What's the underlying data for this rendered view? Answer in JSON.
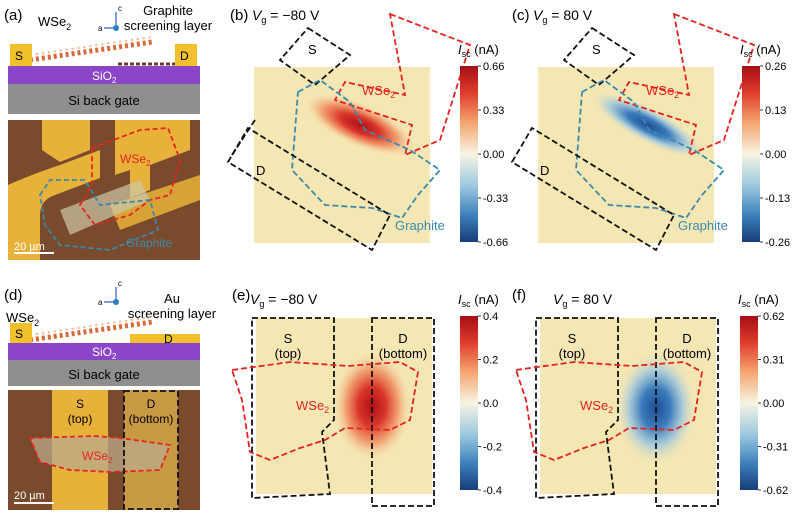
{
  "panels": {
    "a": {
      "label": "(a)",
      "material": "WSe",
      "material_sub": "2",
      "screen_line1": "Graphite",
      "screen_line2": "screening layer",
      "source": "S",
      "drain": "D",
      "oxide": "SiO",
      "oxide_sub": "2",
      "gate": "Si back gate",
      "photo_material": "WSe",
      "photo_material_sub": "2",
      "photo_screen": "Graphite",
      "scalebar": "20 µm",
      "axis_c": "c",
      "axis_a": "a"
    },
    "b": {
      "label": "(b)",
      "vg_prefix": "V",
      "vg_sub": "g",
      "vg_value": " = −80 V",
      "source": "S",
      "drain": "D",
      "material": "WSe",
      "material_sub": "2",
      "screen": "Graphite",
      "cb_title": "I",
      "cb_sub": "sc",
      "cb_unit": " (nA)",
      "cb_ticks": [
        "0.66",
        "0.33",
        "0.00",
        "-0.33",
        "-0.66"
      ]
    },
    "c": {
      "label": "(c)",
      "vg_prefix": "V",
      "vg_sub": "g",
      "vg_value": " = 80 V",
      "source": "S",
      "drain": "D",
      "material": "WSe",
      "material_sub": "2",
      "screen": "Graphite",
      "cb_title": "I",
      "cb_sub": "sc",
      "cb_unit": " (nA)",
      "cb_ticks": [
        "0.26",
        "0.13",
        "0.00",
        "-0.13",
        "-0.26"
      ]
    },
    "d": {
      "label": "(d)",
      "material": "WSe",
      "material_sub": "2",
      "screen_line1": "Au",
      "screen_line2": "screening layer",
      "source": "S",
      "drain": "D",
      "oxide": "SiO",
      "oxide_sub": "2",
      "gate": "Si back gate",
      "photo_source": "S",
      "photo_source_pos": "(top)",
      "photo_drain": "D",
      "photo_drain_pos": "(bottom)",
      "photo_material": "WSe",
      "photo_material_sub": "2",
      "scalebar": "20 µm",
      "axis_c": "c",
      "axis_a": "a"
    },
    "e": {
      "label": "(e)",
      "vg_prefix": "V",
      "vg_sub": "g",
      "vg_value": " = −80 V",
      "source": "S",
      "source_pos": "(top)",
      "drain": "D",
      "drain_pos": "(bottom)",
      "material": "WSe",
      "material_sub": "2",
      "cb_title": "I",
      "cb_sub": "sc",
      "cb_unit": " (nA)",
      "cb_ticks": [
        "0.4",
        "0.2",
        "0.0",
        "-0.2",
        "-0.4"
      ]
    },
    "f": {
      "label": "(f)",
      "vg_prefix": "V",
      "vg_sub": "g",
      "vg_value": " = 80 V",
      "source": "S",
      "source_pos": "(top)",
      "drain": "D",
      "drain_pos": "(bottom)",
      "material": "WSe",
      "material_sub": "2",
      "cb_title": "I",
      "cb_sub": "sc",
      "cb_unit": " (nA)",
      "cb_ticks": [
        "0.62",
        "0.31",
        "0.00",
        "-0.31",
        "-0.62"
      ]
    }
  },
  "colors": {
    "map_background": "#f5e7b4",
    "positive": "#c0141c",
    "negative": "#2a62a6",
    "wse2_outline": "#e8231e",
    "graphite_outline": "#3a8ab0",
    "electrode_outline": "#111111",
    "gold": "#f1c02a",
    "oxide": "#8a45c8",
    "silicon": "#8f8f8f",
    "photo_background": "#7a4a2c"
  }
}
